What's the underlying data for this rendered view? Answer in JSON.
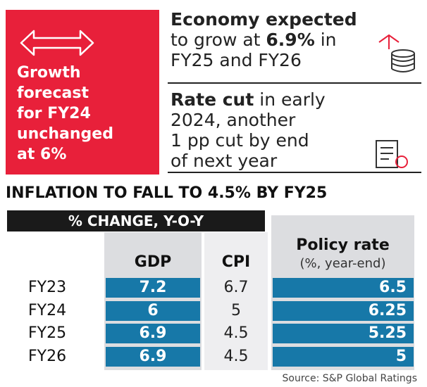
{
  "header_box": {
    "lines": [
      "Growth",
      "forecast",
      "for FY24",
      "unchanged",
      "at 6%"
    ]
  },
  "callouts": [
    {
      "lines": [
        [
          "Economy expected"
        ],
        [
          "to grow at ",
          "6.9%",
          " in"
        ],
        [
          "FY25 and FY26"
        ]
      ]
    },
    {
      "lines": [
        [
          "Rate cut",
          " in early"
        ],
        [
          "2024, another"
        ],
        [
          "1 pp cut by end"
        ],
        [
          "of next year"
        ]
      ]
    }
  ],
  "table": {
    "title": "INFLATION TO FALL TO 4.5% BY FY25",
    "subtitle": "% CHANGE, Y-O-Y",
    "columns": [
      "GDP",
      "CPI",
      "Policy rate"
    ],
    "column_note": "(%, year-end)",
    "rows": [
      [
        "FY23",
        7.2,
        6.7,
        6.5
      ],
      [
        "FY24",
        6,
        5,
        6.25
      ],
      [
        "FY25",
        6.9,
        4.5,
        5.25
      ],
      [
        "FY26",
        6.9,
        4.5,
        5
      ]
    ],
    "source": "Source: S&P Global Ratings"
  }
}
